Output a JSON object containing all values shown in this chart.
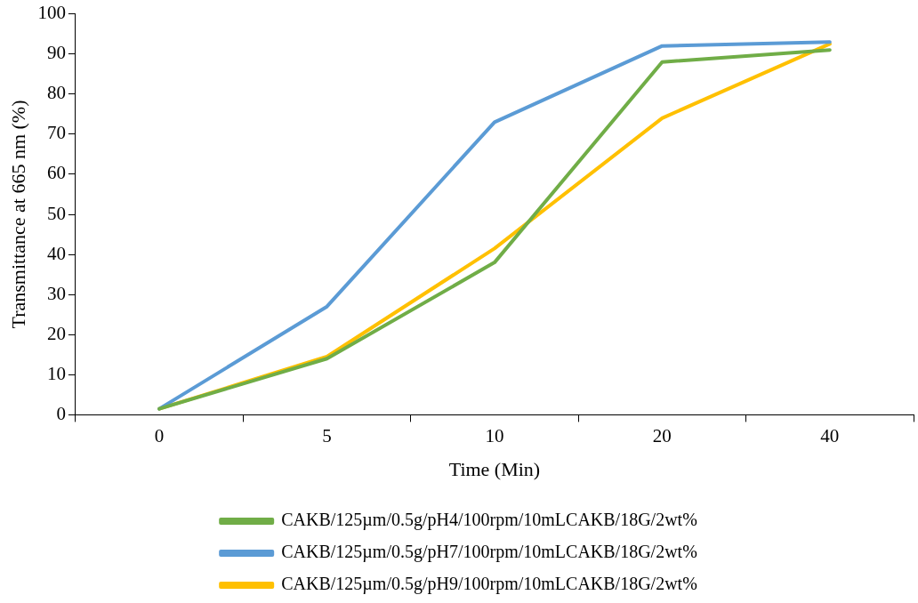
{
  "chart_data": {
    "type": "line",
    "xlabel": "Time (Min)",
    "ylabel": "Transmittance at 665 nm (%)",
    "categories": [
      "0",
      "5",
      "10",
      "20",
      "40"
    ],
    "series": [
      {
        "name": "CAKB/125µm/0.5g/pH4/100rpm/10mLCAKB/18G/2wt%",
        "color": "#70ad47",
        "values": [
          1.5,
          14,
          38,
          88,
          91
        ]
      },
      {
        "name": "CAKB/125µm/0.5g/pH7/100rpm/10mLCAKB/18G/2wt%",
        "color": "#5b9bd5",
        "values": [
          1.5,
          27,
          73,
          92,
          93
        ]
      },
      {
        "name": "CAKB/125µm/0.5g/pH9/100rpm/10mLCAKB/18G/2wt%",
        "color": "#ffc000",
        "values": [
          1.5,
          14.5,
          41.5,
          74,
          92.5
        ]
      }
    ],
    "ylim": [
      0,
      100
    ],
    "yticks": [
      0,
      10,
      20,
      30,
      40,
      50,
      60,
      70,
      80,
      90,
      100
    ],
    "grid": false,
    "legend": "bottom",
    "marker": "none",
    "line_style": "solid"
  }
}
